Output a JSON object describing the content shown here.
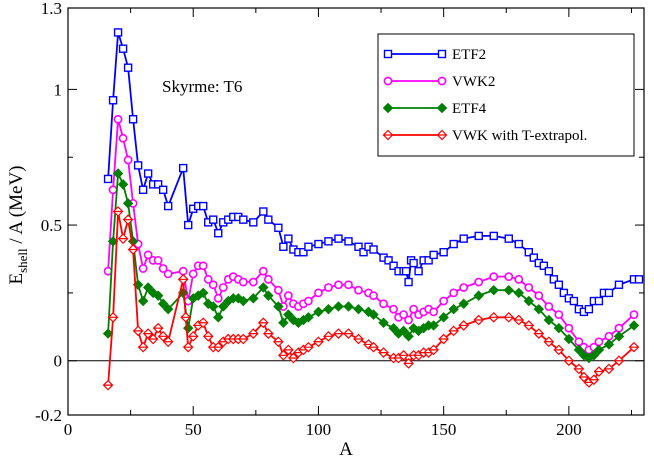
{
  "chart_data": {
    "type": "line",
    "title": "",
    "xlabel": "A",
    "ylabel": "E",
    "ylabel_sub": "shell",
    "ylabel_rest": " / A  (MeV)",
    "annotation": "Skyrme:   T6",
    "xlim": [
      0,
      230
    ],
    "ylim": [
      -0.2,
      1.3
    ],
    "xticks": [
      0,
      50,
      100,
      150,
      200
    ],
    "yticks": [
      -0.2,
      0,
      0.5,
      1,
      1.3
    ],
    "ytick_labels": [
      "-0.2",
      "0",
      "0.5",
      "1",
      "1.3"
    ],
    "zero_line": true,
    "legend_position": "top-right",
    "series": [
      {
        "name": "ETF2",
        "color": "#0000ff",
        "marker": "square-open",
        "x": [
          16,
          18,
          20,
          22,
          24,
          26,
          28,
          30,
          32,
          34,
          36,
          38,
          40,
          46,
          48,
          50,
          52,
          54,
          56,
          58,
          60,
          62,
          64,
          66,
          68,
          70,
          74,
          78,
          80,
          84,
          86,
          88,
          90,
          92,
          94,
          96,
          100,
          104,
          108,
          112,
          116,
          118,
          120,
          122,
          126,
          128,
          130,
          132,
          134,
          135,
          136,
          137,
          138,
          140,
          142,
          144,
          146,
          150,
          154,
          158,
          164,
          170,
          176,
          180,
          184,
          186,
          188,
          190,
          192,
          194,
          196,
          198,
          200,
          202,
          204,
          206,
          208,
          210,
          212,
          214,
          216,
          220,
          226,
          228
        ],
        "y": [
          0.67,
          0.96,
          1.21,
          1.15,
          1.08,
          0.89,
          0.72,
          0.63,
          0.69,
          0.65,
          0.65,
          0.63,
          0.57,
          0.71,
          0.5,
          0.56,
          0.57,
          0.57,
          0.51,
          0.52,
          0.47,
          0.51,
          0.52,
          0.53,
          0.53,
          0.52,
          0.51,
          0.55,
          0.52,
          0.49,
          0.42,
          0.45,
          0.41,
          0.4,
          0.4,
          0.42,
          0.43,
          0.44,
          0.45,
          0.44,
          0.42,
          0.4,
          0.42,
          0.41,
          0.38,
          0.37,
          0.35,
          0.33,
          0.33,
          0.33,
          0.29,
          0.37,
          0.36,
          0.33,
          0.37,
          0.37,
          0.39,
          0.4,
          0.43,
          0.45,
          0.46,
          0.46,
          0.45,
          0.43,
          0.4,
          0.38,
          0.36,
          0.35,
          0.33,
          0.3,
          0.28,
          0.25,
          0.23,
          0.22,
          0.19,
          0.18,
          0.19,
          0.22,
          0.22,
          0.25,
          0.25,
          0.28,
          0.3,
          0.3
        ]
      },
      {
        "name": "VWK2",
        "color": "#ff00ff",
        "marker": "circle-open",
        "x": [
          16,
          18,
          20,
          22,
          24,
          26,
          28,
          30,
          32,
          34,
          36,
          38,
          40,
          46,
          48,
          50,
          52,
          54,
          56,
          58,
          60,
          62,
          64,
          66,
          68,
          70,
          74,
          78,
          80,
          84,
          86,
          88,
          90,
          92,
          94,
          96,
          100,
          104,
          108,
          112,
          116,
          120,
          122,
          126,
          130,
          132,
          134,
          136,
          138,
          140,
          142,
          144,
          146,
          150,
          154,
          158,
          164,
          170,
          176,
          180,
          184,
          188,
          192,
          196,
          200,
          204,
          206,
          208,
          210,
          212,
          216,
          220,
          226
        ],
        "y": [
          0.33,
          0.63,
          0.89,
          0.82,
          0.74,
          0.58,
          0.43,
          0.34,
          0.39,
          0.37,
          0.37,
          0.34,
          0.32,
          0.33,
          0.22,
          0.32,
          0.35,
          0.35,
          0.3,
          0.28,
          0.23,
          0.27,
          0.3,
          0.31,
          0.3,
          0.29,
          0.29,
          0.33,
          0.3,
          0.26,
          0.2,
          0.24,
          0.21,
          0.2,
          0.21,
          0.22,
          0.25,
          0.27,
          0.28,
          0.28,
          0.26,
          0.25,
          0.24,
          0.21,
          0.19,
          0.16,
          0.17,
          0.15,
          0.19,
          0.17,
          0.18,
          0.19,
          0.18,
          0.22,
          0.25,
          0.27,
          0.29,
          0.31,
          0.31,
          0.3,
          0.27,
          0.24,
          0.2,
          0.17,
          0.12,
          0.07,
          0.05,
          0.04,
          0.05,
          0.07,
          0.09,
          0.12,
          0.17
        ]
      },
      {
        "name": "ETF4",
        "color": "#008000",
        "marker": "diamond-filled",
        "x": [
          16,
          18,
          20,
          22,
          24,
          26,
          28,
          30,
          32,
          34,
          36,
          38,
          40,
          46,
          48,
          50,
          52,
          54,
          56,
          58,
          60,
          62,
          64,
          66,
          68,
          70,
          74,
          78,
          80,
          84,
          86,
          88,
          90,
          92,
          94,
          96,
          100,
          104,
          108,
          112,
          116,
          120,
          122,
          126,
          130,
          132,
          134,
          136,
          138,
          140,
          142,
          144,
          146,
          150,
          154,
          158,
          164,
          170,
          176,
          180,
          184,
          188,
          192,
          196,
          200,
          204,
          206,
          208,
          210,
          212,
          216,
          220,
          226
        ],
        "y": [
          0.1,
          0.44,
          0.69,
          0.65,
          0.58,
          0.44,
          0.28,
          0.22,
          0.27,
          0.25,
          0.24,
          0.21,
          0.19,
          0.25,
          0.12,
          0.23,
          0.24,
          0.25,
          0.21,
          0.2,
          0.16,
          0.2,
          0.22,
          0.23,
          0.23,
          0.22,
          0.23,
          0.27,
          0.24,
          0.2,
          0.14,
          0.17,
          0.15,
          0.14,
          0.15,
          0.16,
          0.18,
          0.19,
          0.2,
          0.2,
          0.19,
          0.18,
          0.17,
          0.14,
          0.12,
          0.1,
          0.11,
          0.09,
          0.12,
          0.11,
          0.12,
          0.13,
          0.13,
          0.16,
          0.19,
          0.21,
          0.24,
          0.26,
          0.26,
          0.25,
          0.22,
          0.19,
          0.15,
          0.12,
          0.08,
          0.04,
          0.02,
          0.01,
          0.02,
          0.04,
          0.06,
          0.09,
          0.13
        ]
      },
      {
        "name": "VWK with T-extrapol.",
        "color": "#ff0000",
        "marker": "diamond-open",
        "x": [
          16,
          18,
          20,
          22,
          24,
          26,
          28,
          30,
          32,
          34,
          36,
          38,
          40,
          46,
          47,
          48,
          50,
          52,
          54,
          56,
          58,
          60,
          62,
          64,
          66,
          68,
          70,
          74,
          78,
          80,
          84,
          86,
          88,
          90,
          92,
          94,
          96,
          100,
          104,
          108,
          112,
          116,
          120,
          122,
          126,
          130,
          132,
          134,
          136,
          138,
          140,
          142,
          144,
          146,
          150,
          154,
          158,
          164,
          170,
          176,
          180,
          184,
          188,
          192,
          196,
          200,
          204,
          206,
          208,
          210,
          212,
          216,
          220,
          226
        ],
        "y": [
          -0.09,
          0.16,
          0.55,
          0.45,
          0.52,
          0.41,
          0.11,
          0.05,
          0.1,
          0.08,
          0.12,
          0.09,
          0.07,
          0.3,
          0.16,
          0.05,
          0.09,
          0.13,
          0.14,
          0.09,
          0.05,
          0.05,
          0.07,
          0.08,
          0.08,
          0.08,
          0.08,
          0.1,
          0.14,
          0.1,
          0.07,
          0.02,
          0.04,
          0.01,
          0.03,
          0.04,
          0.05,
          0.07,
          0.09,
          0.1,
          0.1,
          0.08,
          0.06,
          0.05,
          0.03,
          0.01,
          0.01,
          0.02,
          -0.01,
          0.02,
          0.02,
          0.03,
          0.03,
          0.04,
          0.08,
          0.11,
          0.13,
          0.15,
          0.16,
          0.16,
          0.15,
          0.13,
          0.1,
          0.07,
          0.04,
          0.0,
          -0.03,
          -0.06,
          -0.08,
          -0.07,
          -0.04,
          -0.03,
          0.0,
          0.05
        ]
      }
    ]
  }
}
